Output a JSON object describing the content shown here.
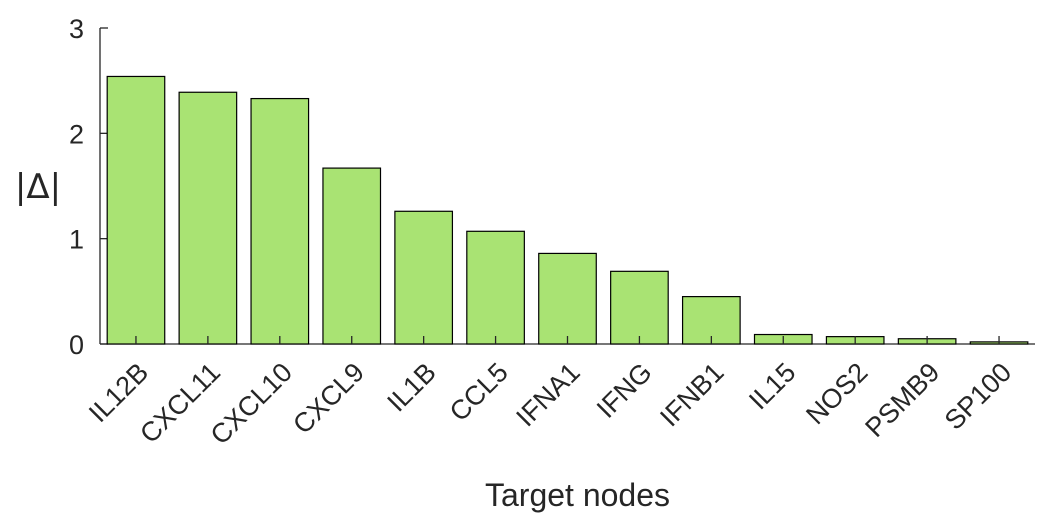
{
  "chart_data": {
    "type": "bar",
    "title": "",
    "xlabel": "Target nodes",
    "ylabel": "|Δ|",
    "categories": [
      "IL12B",
      "CXCL11",
      "CXCL10",
      "CXCL9",
      "IL1B",
      "CCL5",
      "IFNA1",
      "IFNG",
      "IFNB1",
      "IL15",
      "NOS2",
      "PSMB9",
      "SP100"
    ],
    "values": [
      2.54,
      2.39,
      2.33,
      1.67,
      1.26,
      1.07,
      0.86,
      0.69,
      0.45,
      0.09,
      0.07,
      0.05,
      0.02
    ],
    "ylim": [
      0,
      3
    ],
    "yticks": [
      0,
      1,
      2,
      3
    ],
    "bar_color": "#a9e373",
    "grid": false,
    "legend": "none"
  }
}
